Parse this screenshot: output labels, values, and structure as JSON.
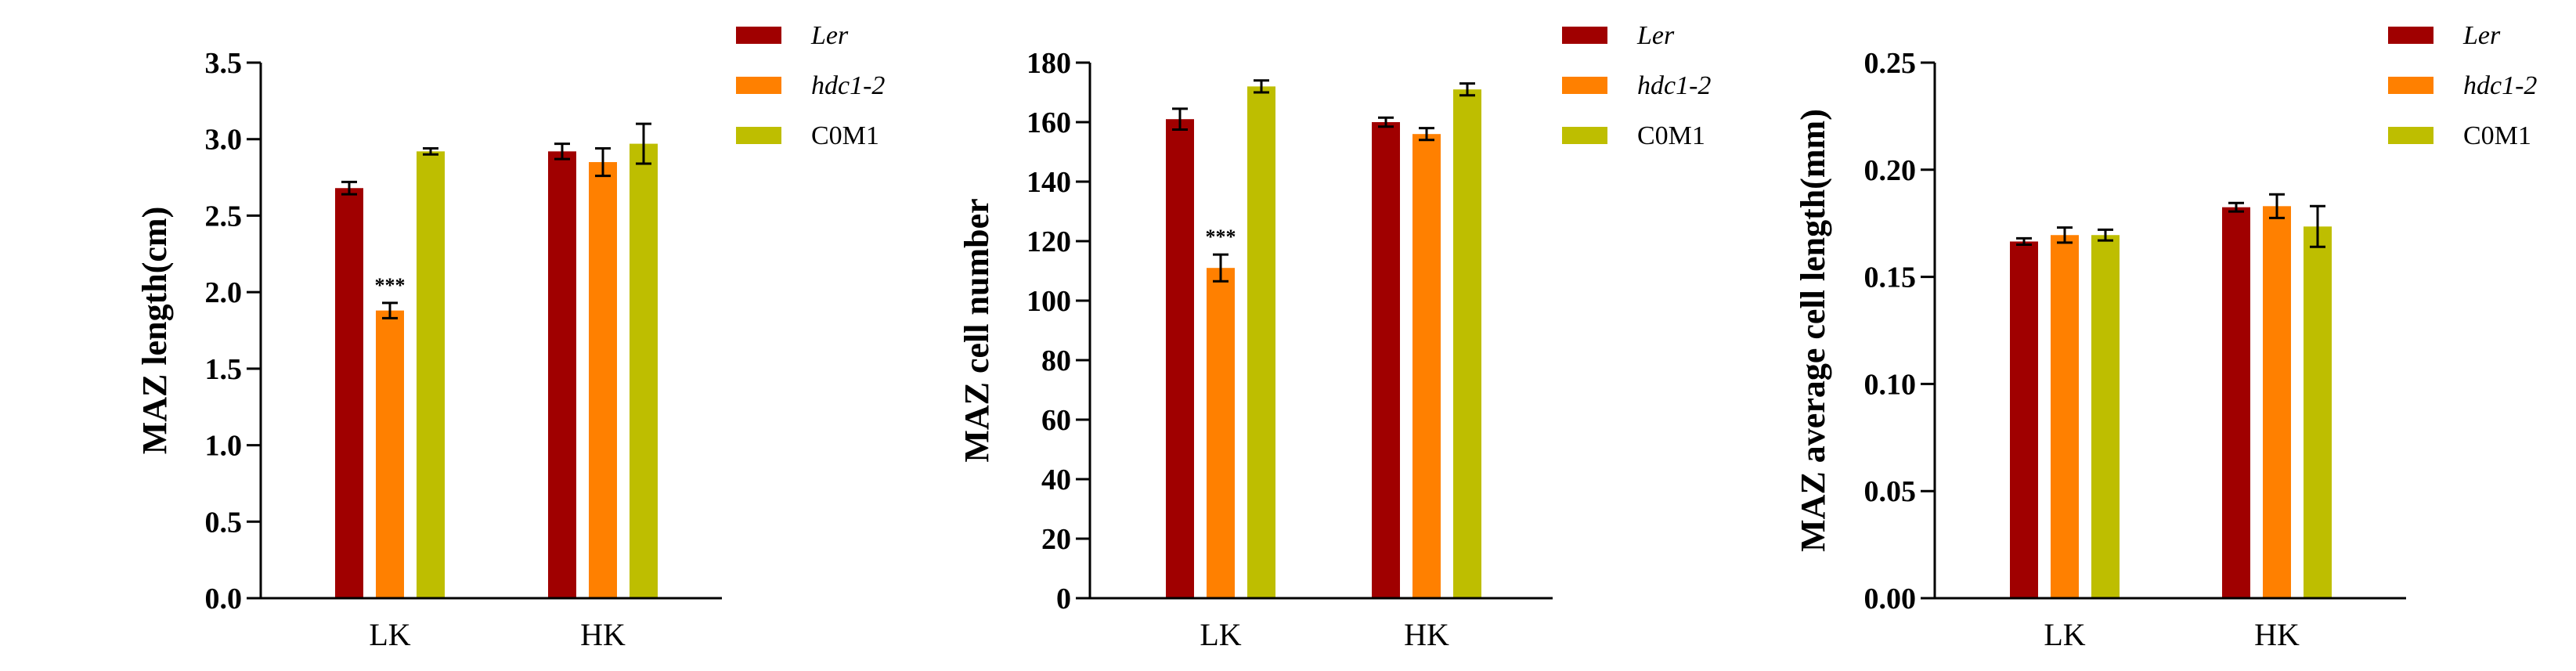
{
  "chart_data": [
    {
      "type": "bar",
      "ylabel": "MAZ length(cm)",
      "ylim": [
        0,
        3.5
      ],
      "yticks": [
        0.0,
        0.5,
        1.0,
        1.5,
        2.0,
        2.5,
        3.0,
        3.5
      ],
      "ytick_labels": [
        "0.0",
        "0.5",
        "1.0",
        "1.5",
        "2.0",
        "2.5",
        "3.0",
        "3.5"
      ],
      "categories": [
        "LK",
        "HK"
      ],
      "series": [
        {
          "name": "Ler",
          "italic": true,
          "color": "#A00000",
          "values": [
            2.68,
            2.92
          ],
          "errors": [
            0.04,
            0.05
          ]
        },
        {
          "name": "hdc1-2",
          "italic": true,
          "color": "#FF8000",
          "values": [
            1.88,
            2.85
          ],
          "errors": [
            0.05,
            0.09
          ]
        },
        {
          "name": "C0M1",
          "italic": false,
          "color": "#BEBE00",
          "values": [
            2.92,
            2.97
          ],
          "errors": [
            0.02,
            0.13
          ]
        }
      ],
      "annotations": [
        {
          "text": "***",
          "category": 0,
          "series": 1
        }
      ],
      "legend": "top-right",
      "grid": false
    },
    {
      "type": "bar",
      "ylabel": "MAZ cell number",
      "ylim": [
        0,
        180
      ],
      "yticks": [
        0,
        20,
        40,
        60,
        80,
        100,
        120,
        140,
        160,
        180
      ],
      "ytick_labels": [
        "0",
        "20",
        "40",
        "60",
        "80",
        "100",
        "120",
        "140",
        "160",
        "180"
      ],
      "categories": [
        "LK",
        "HK"
      ],
      "series": [
        {
          "name": "Ler",
          "italic": true,
          "color": "#A00000",
          "values": [
            161,
            160
          ],
          "errors": [
            3.5,
            1.5
          ]
        },
        {
          "name": "hdc1-2",
          "italic": true,
          "color": "#FF8000",
          "values": [
            111,
            156
          ],
          "errors": [
            4.5,
            2
          ]
        },
        {
          "name": "C0M1",
          "italic": false,
          "color": "#BEBE00",
          "values": [
            172,
            171
          ],
          "errors": [
            2,
            2
          ]
        }
      ],
      "annotations": [
        {
          "text": "***",
          "category": 0,
          "series": 1
        }
      ],
      "legend": "top-right",
      "grid": false
    },
    {
      "type": "bar",
      "ylabel": "MAZ  average cell length(mm)",
      "ylim": [
        0,
        0.25
      ],
      "yticks": [
        0.0,
        0.05,
        0.1,
        0.15,
        0.2,
        0.25
      ],
      "ytick_labels": [
        "0.00",
        "0.05",
        "0.10",
        "0.15",
        "0.20",
        "0.25"
      ],
      "categories": [
        "LK",
        "HK"
      ],
      "series": [
        {
          "name": "Ler",
          "italic": true,
          "color": "#A00000",
          "values": [
            0.1665,
            0.1825
          ],
          "errors": [
            0.0015,
            0.002
          ]
        },
        {
          "name": "hdc1-2",
          "italic": true,
          "color": "#FF8000",
          "values": [
            0.1695,
            0.183
          ],
          "errors": [
            0.0035,
            0.0055
          ]
        },
        {
          "name": "C0M1",
          "italic": false,
          "color": "#BEBE00",
          "values": [
            0.1695,
            0.1735
          ],
          "errors": [
            0.0025,
            0.0095
          ]
        }
      ],
      "annotations": [],
      "legend": "top-right",
      "grid": false
    }
  ]
}
